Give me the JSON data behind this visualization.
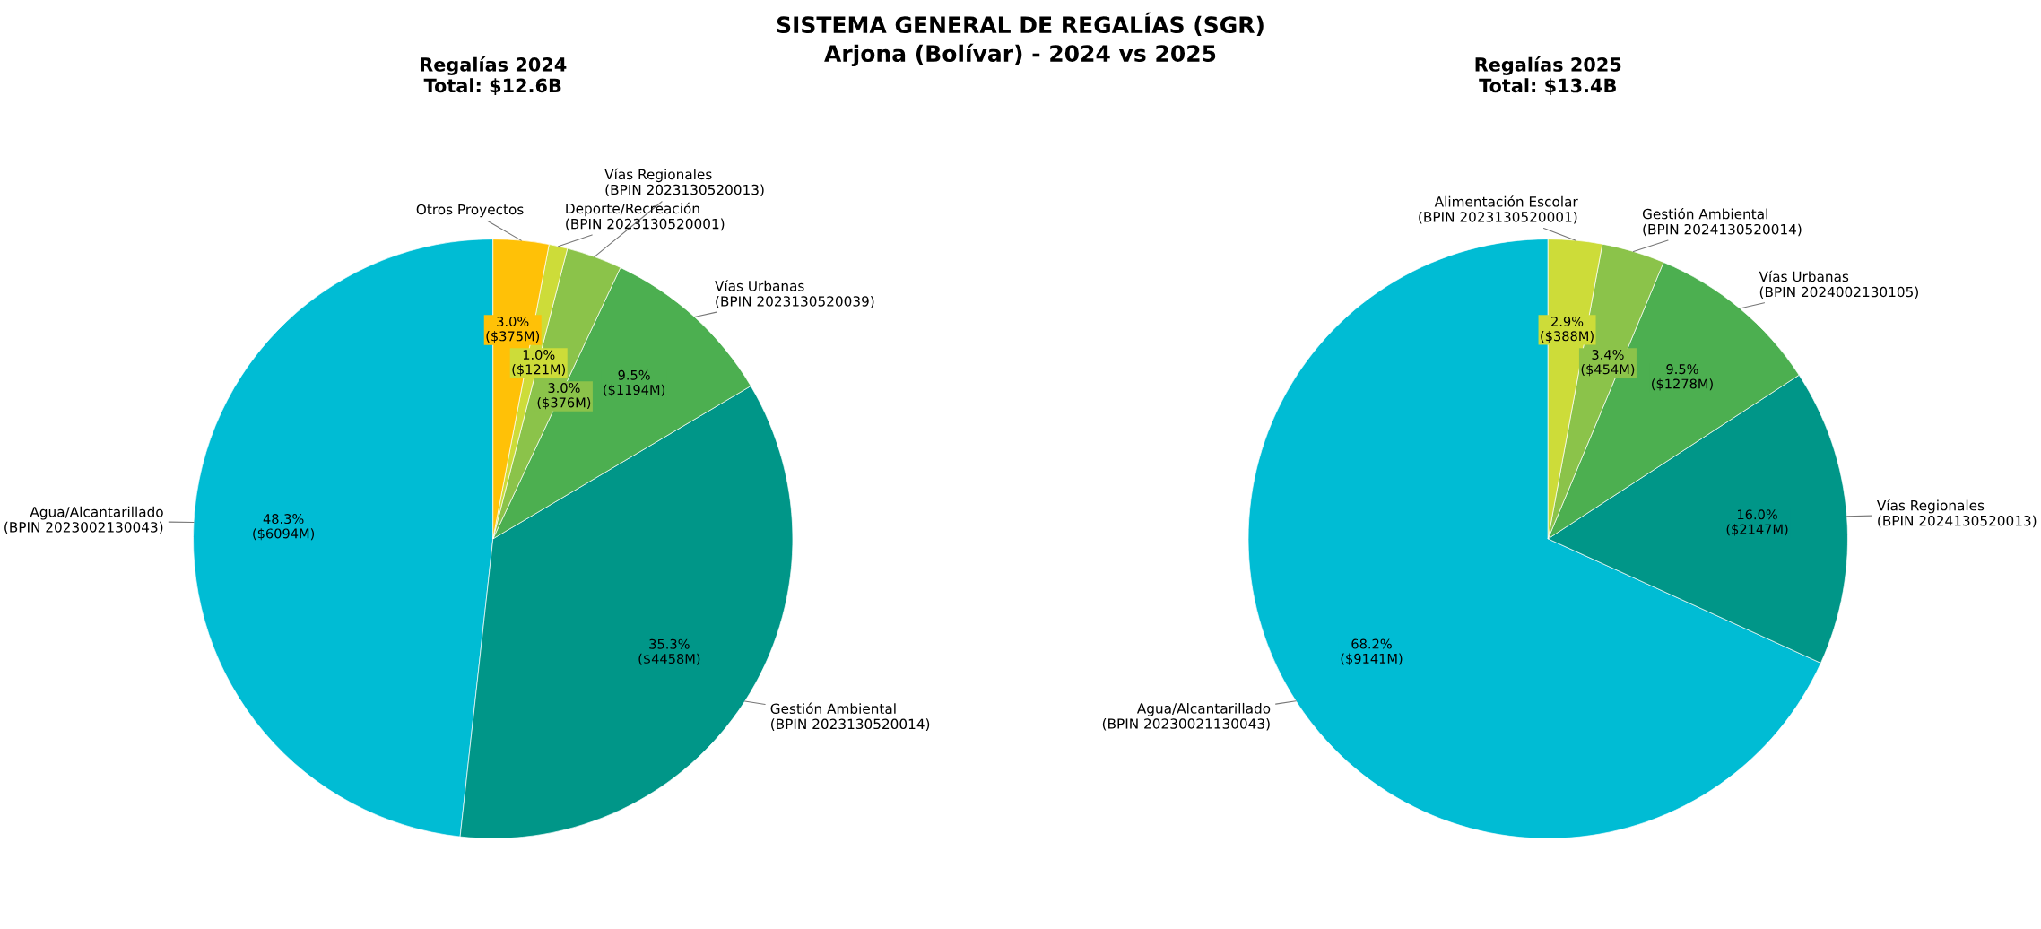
{
  "chart_data": [
    {
      "type": "pie",
      "title": "Regalías 2024\nTotal: $12.6B",
      "annotations": [
        "SISTEMA GENERAL DE REGALÍAS (SGR)",
        "Arjona (Bolívar) - 2024 vs 2025"
      ],
      "categories": [
        "Agua/Alcantarillado\n(BPIN 2023002130043)",
        "Gestión Ambiental\n(BPIN 2023130520014)",
        "Vías Urbanas\n(BPIN 2023130520039)",
        "Vías Regionales\n(BPIN 2023130520013)",
        "Deporte/Recreación\n(BPIN 2023130520001)",
        "Otros Proyectos"
      ],
      "values": [
        48.3,
        35.3,
        9.5,
        3.0,
        1.0,
        3.0
      ],
      "value_labels": [
        "48.3%\n($6094M)",
        "35.3%\n($4458M)",
        "9.5%\n($1194M)",
        "3.0%\n($376M)",
        "1.0%\n($121M)",
        "3.0%\n($375M)"
      ],
      "colors": [
        "#00bcd4",
        "#009688",
        "#4caf50",
        "#8bc34a",
        "#cddc39",
        "#ffc107"
      ]
    },
    {
      "type": "pie",
      "title": "Regalías 2025\nTotal: $13.4B",
      "categories": [
        "Agua/Alcantarillado\n(BPIN 20230021130043)",
        "Vías Regionales\n(BPIN 2024130520013)",
        "Vías Urbanas\n(BPIN 2024002130105)",
        "Gestión Ambiental\n(BPIN 2024130520014)",
        "Alimentación Escolar\n(BPIN 2023130520001)"
      ],
      "values": [
        68.2,
        16.0,
        9.5,
        3.4,
        2.9
      ],
      "value_labels": [
        "68.2%\n($9141M)",
        "16.0%\n($2147M)",
        "9.5%\n($1278M)",
        "3.4%\n($454M)",
        "2.9%\n($388M)"
      ],
      "colors": [
        "#00bcd4",
        "#009688",
        "#4caf50",
        "#8bc34a",
        "#cddc39"
      ]
    }
  ]
}
